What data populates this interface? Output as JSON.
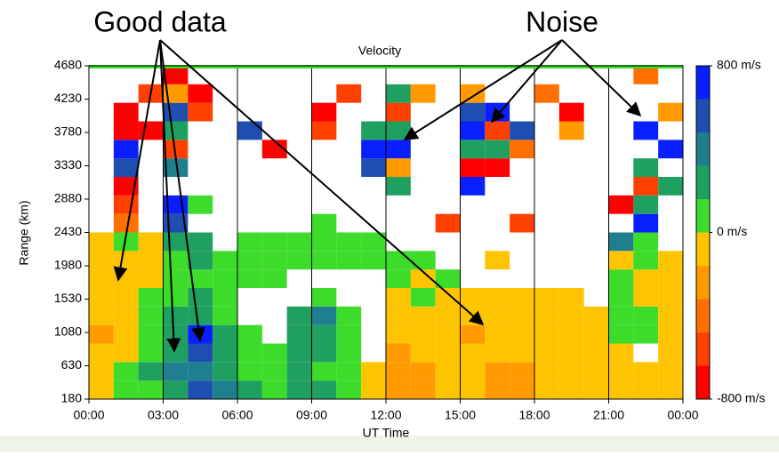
{
  "chart_data": {
    "type": "heatmap",
    "title": "Velocity",
    "xlabel": "UT Time",
    "ylabel": "Range (km)",
    "xlim": [
      0,
      24
    ],
    "ylim": [
      180,
      4680
    ],
    "xticks": [
      {
        "value": 0,
        "label": "00:00"
      },
      {
        "value": 3,
        "label": "03:00"
      },
      {
        "value": 6,
        "label": "06:00"
      },
      {
        "value": 9,
        "label": "09:00"
      },
      {
        "value": 12,
        "label": "12:00"
      },
      {
        "value": 15,
        "label": "15:00"
      },
      {
        "value": 18,
        "label": "18:00"
      },
      {
        "value": 21,
        "label": "21:00"
      },
      {
        "value": 24,
        "label": "00:00"
      }
    ],
    "yticks": [
      180,
      630,
      1080,
      1530,
      1980,
      2430,
      2880,
      3330,
      3780,
      4230,
      4680
    ],
    "grid": true,
    "clim": [
      -800,
      800
    ],
    "cticks": [
      {
        "value": 800,
        "label": "800 m/s"
      },
      {
        "value": 0,
        "label": "0 m/s"
      },
      {
        "value": -800,
        "label": "-800 m/s"
      }
    ],
    "colors": [
      "#ff0000",
      "#ff4000",
      "#ff7000",
      "#ff9a00",
      "#ffc400",
      "#3ddb2a",
      "#1fa060",
      "#1f7f8f",
      "#1e4fb0",
      "#0a1fff"
    ],
    "xbins": [
      0,
      1,
      2,
      3,
      4,
      5,
      6,
      7,
      8,
      9,
      10,
      11,
      12,
      13,
      14,
      15,
      16,
      17,
      18,
      19,
      20,
      21,
      22,
      23,
      24
    ],
    "ybins": [
      180,
      430,
      680,
      930,
      1180,
      1430,
      1680,
      1930,
      2180,
      2430,
      2680,
      2930,
      3180,
      3430,
      3680,
      3930,
      4180,
      4430,
      4680
    ],
    "z": [
      [
        -100,
        80,
        150,
        300,
        500,
        400,
        200,
        150,
        300,
        200,
        100,
        -100,
        -200,
        -250,
        -150,
        -100,
        -200,
        -300,
        -150,
        -100,
        -80,
        -100,
        -100,
        -80
      ],
      [
        -50,
        100,
        200,
        350,
        450,
        300,
        150,
        100,
        250,
        150,
        50,
        -80,
        -250,
        -200,
        -100,
        -150,
        -250,
        -200,
        -100,
        -80,
        -100,
        -120,
        -80,
        -60
      ],
      [
        -150,
        -100,
        100,
        300,
        600,
        250,
        100,
        150,
        200,
        200,
        100,
        null,
        -200,
        -150,
        -100,
        -150,
        -120,
        -100,
        -80,
        -100,
        -120,
        -60,
        null,
        -50
      ],
      [
        -200,
        -150,
        50,
        250,
        650,
        200,
        100,
        null,
        300,
        300,
        150,
        null,
        -150,
        -100,
        -150,
        -200,
        -100,
        -80,
        -100,
        -120,
        -80,
        50,
        80,
        -60
      ],
      [
        -100,
        -80,
        100,
        200,
        300,
        150,
        null,
        null,
        200,
        350,
        100,
        null,
        -120,
        -100,
        -80,
        -100,
        -80,
        -60,
        -80,
        -80,
        -100,
        100,
        60,
        -80
      ],
      [
        -80,
        -100,
        80,
        150,
        200,
        100,
        null,
        null,
        null,
        150,
        null,
        null,
        -100,
        80,
        -80,
        -100,
        -60,
        -80,
        -80,
        -60,
        null,
        80,
        -60,
        -80
      ],
      [
        -80,
        -60,
        -80,
        100,
        150,
        100,
        80,
        100,
        null,
        null,
        null,
        null,
        60,
        -60,
        80,
        null,
        null,
        null,
        null,
        null,
        null,
        50,
        -80,
        -60
      ],
      [
        -60,
        -80,
        -100,
        150,
        200,
        80,
        100,
        120,
        100,
        80,
        120,
        100,
        80,
        100,
        null,
        null,
        -80,
        null,
        null,
        null,
        null,
        -100,
        60,
        -60
      ],
      [
        -80,
        60,
        -100,
        200,
        300,
        null,
        100,
        80,
        120,
        150,
        100,
        80,
        null,
        null,
        null,
        null,
        null,
        null,
        null,
        null,
        null,
        400,
        80,
        null
      ],
      [
        null,
        -400,
        null,
        500,
        null,
        null,
        null,
        null,
        null,
        100,
        null,
        null,
        null,
        null,
        -500,
        null,
        null,
        -600,
        null,
        null,
        null,
        null,
        700,
        null
      ],
      [
        null,
        -600,
        null,
        700,
        100,
        null,
        null,
        null,
        null,
        null,
        null,
        null,
        null,
        null,
        null,
        null,
        null,
        null,
        null,
        null,
        null,
        -700,
        300,
        null
      ],
      [
        null,
        -700,
        null,
        null,
        null,
        null,
        null,
        null,
        null,
        null,
        null,
        null,
        200,
        null,
        null,
        700,
        null,
        null,
        null,
        null,
        null,
        null,
        -500,
        200
      ],
      [
        null,
        600,
        null,
        400,
        null,
        null,
        null,
        null,
        null,
        null,
        null,
        600,
        -300,
        null,
        null,
        -700,
        -700,
        null,
        null,
        null,
        null,
        null,
        300,
        null
      ],
      [
        null,
        700,
        null,
        -500,
        null,
        null,
        null,
        -700,
        null,
        null,
        null,
        700,
        700,
        null,
        null,
        300,
        200,
        -400,
        null,
        null,
        null,
        null,
        null,
        700
      ],
      [
        null,
        -700,
        -700,
        300,
        null,
        null,
        500,
        null,
        null,
        -600,
        null,
        300,
        200,
        null,
        null,
        700,
        -500,
        600,
        null,
        -300,
        null,
        null,
        700,
        null
      ],
      [
        null,
        -800,
        null,
        600,
        -600,
        null,
        null,
        null,
        null,
        -700,
        null,
        null,
        -600,
        null,
        null,
        600,
        700,
        null,
        null,
        -700,
        null,
        null,
        null,
        -200
      ],
      [
        null,
        null,
        -500,
        -300,
        -700,
        null,
        null,
        null,
        null,
        null,
        -600,
        null,
        300,
        -300,
        null,
        -200,
        null,
        null,
        -400,
        null,
        null,
        null,
        null,
        null
      ],
      [
        null,
        null,
        null,
        -700,
        null,
        null,
        null,
        null,
        null,
        null,
        null,
        null,
        null,
        null,
        null,
        null,
        null,
        null,
        null,
        null,
        null,
        null,
        -400,
        null
      ]
    ],
    "annotations": [
      "Good data",
      "Noise"
    ]
  }
}
